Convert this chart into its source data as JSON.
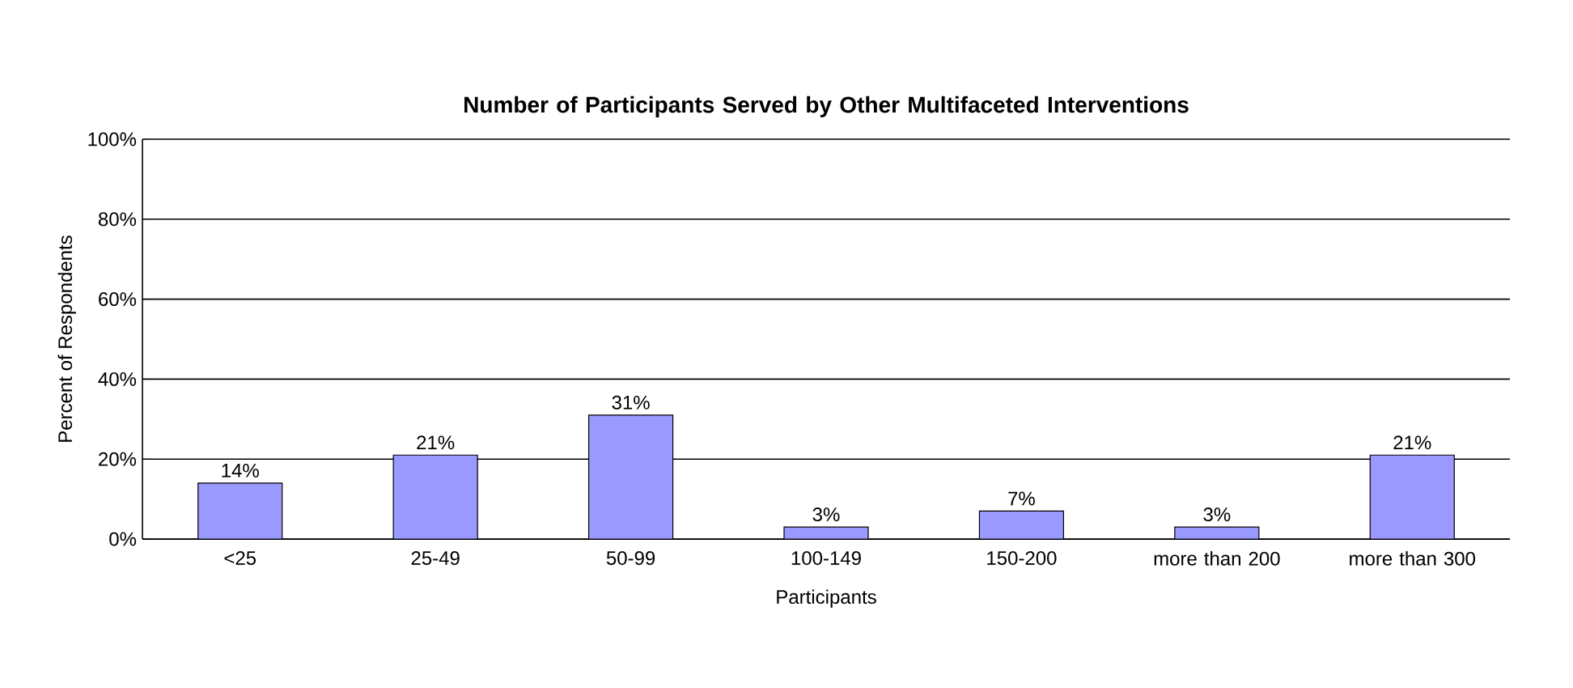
{
  "chart_data": {
    "type": "bar",
    "title": "Number of Participants Served by Other Multifaceted Interventions",
    "xlabel": "Participants",
    "ylabel": "Percent of Respondents",
    "categories": [
      "<25",
      "25-49",
      "50-99",
      "100-149",
      "150-200",
      "more than 200",
      "more than 300"
    ],
    "values": [
      14,
      21,
      31,
      3,
      7,
      3,
      21
    ],
    "value_labels": [
      "14%",
      "21%",
      "31%",
      "3%",
      "7%",
      "3%",
      "21%"
    ],
    "color": "#9999ff",
    "ylim": [
      0,
      100
    ],
    "yticks": [
      {
        "value": 0,
        "label": "0%"
      },
      {
        "value": 20,
        "label": "20%"
      },
      {
        "value": 40,
        "label": "40%"
      },
      {
        "value": 60,
        "label": "60%"
      },
      {
        "value": 80,
        "label": "80%"
      },
      {
        "value": 100,
        "label": "100%"
      }
    ],
    "grid": "y"
  }
}
